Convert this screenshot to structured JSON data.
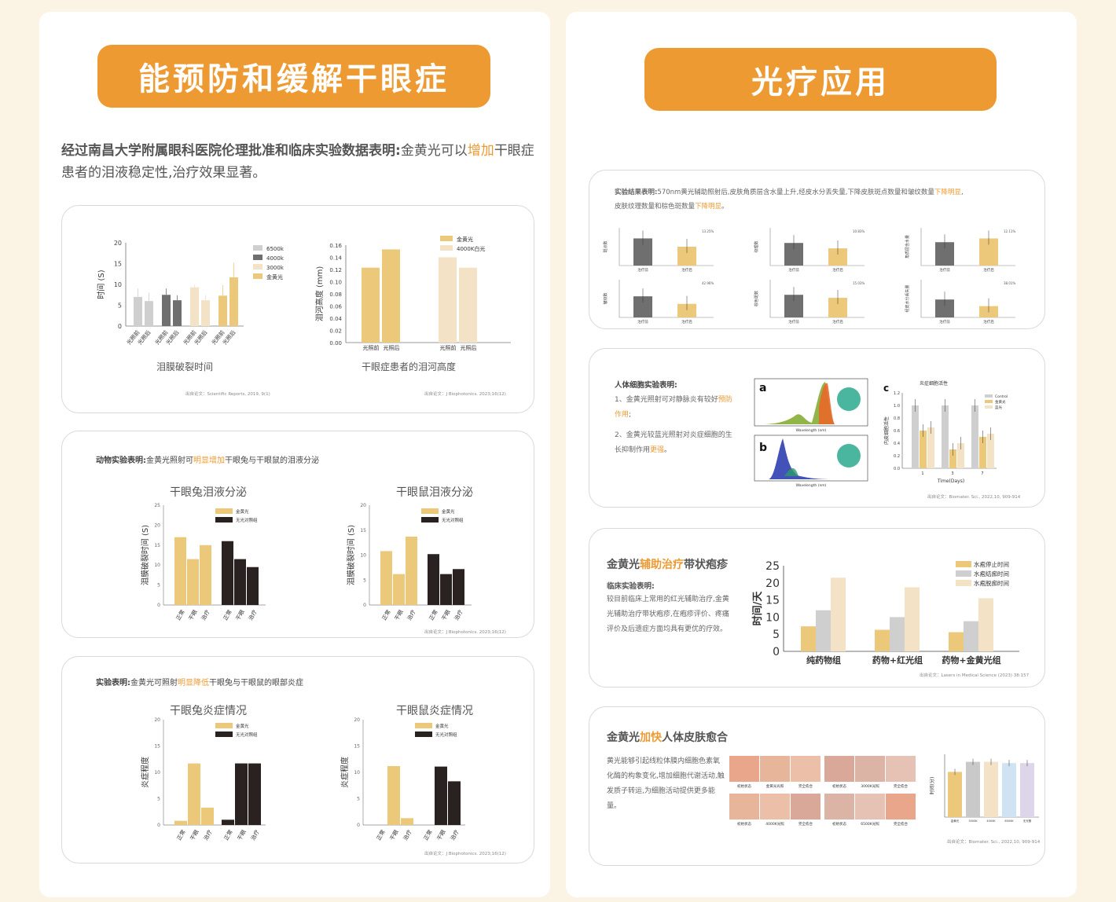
{
  "left": {
    "header": "能预防和缓解干眼症",
    "intro": {
      "bold": "经过南昌大学附属眼科医院伦理批准和临床实验数据表明:",
      "plain1": "金黄光可以",
      "highlight": "增加",
      "plain2": "干眼症患者的泪液稳定性,治疗效果显著。"
    },
    "card1": {
      "chart1": {
        "ylabel": "时间 (S)",
        "yticks": [
          "20",
          "15",
          "10",
          "5",
          "0"
        ],
        "legend": [
          "6500k",
          "4000k",
          "3000k",
          "金黄光"
        ],
        "xlabels": [
          "光照前",
          "光照后",
          "光照前",
          "光照后",
          "光照前",
          "光照后",
          "光照前",
          "光照后"
        ],
        "caption": "泪膜破裂时间",
        "source": "出自论文：Scientific Reports, 2019, 9(1)"
      },
      "chart2": {
        "ylabel": "泪河高度 (mm)",
        "yticks": [
          "0.16",
          "0.14",
          "0.12",
          "0.10",
          "0.08",
          "0.06",
          "0.04",
          "0.02",
          "0.00"
        ],
        "legend": [
          "金黄光",
          "4000K白光"
        ],
        "xlabels": [
          "光照前",
          "光照后",
          "光照前",
          "光照后"
        ],
        "caption": "干眼症患者的泪河高度",
        "source": "出自论文：J Biophotonics. 2023;16(12)"
      }
    },
    "card2": {
      "heading_bold": "动物实验表明:",
      "heading_plain1": "金黄光照射可",
      "heading_highlight": "明显增加",
      "heading_plain2": "干眼兔与干眼鼠的泪液分泌",
      "chart1_title": "干眼兔泪液分泌",
      "chart2_title": "干眼鼠泪液分泌",
      "ylabel": "泪膜破裂时间 (S)",
      "yticks": [
        "25",
        "20",
        "15",
        "10",
        "5",
        "0"
      ],
      "legend": [
        "金黄光",
        "无光对照组"
      ],
      "xlabels": [
        "正常",
        "干眼",
        "治疗",
        "正常",
        "干眼",
        "治疗"
      ],
      "source": "出自论文：J Biophotonics. 2023;16(12)"
    },
    "card3": {
      "heading_bold": "实验表明:",
      "heading_plain1": "金黄光可照射",
      "heading_highlight": "明显降低",
      "heading_plain2": "干眼兔与干眼鼠的眼部炎症",
      "chart1_title": "干眼兔炎症情况",
      "chart2_title": "干眼鼠炎症情况",
      "ylabel": "炎症程度",
      "yticks": [
        "20",
        "15",
        "10",
        "5",
        "0"
      ],
      "legend": [
        "金黄光",
        "无光对照组"
      ],
      "xlabels": [
        "正常",
        "干眼",
        "治疗",
        "正常",
        "干眼",
        "治疗"
      ],
      "source": "出自论文：J Biophotonics. 2023;16(12)"
    }
  },
  "right": {
    "header": "光疗应用",
    "card1": {
      "heading_bold": "实验结果表明:",
      "heading_plain": "570nm黄光辅助照射后,皮肤角质层含水量上升,经皮水分丢失量,下降皮肤斑点数量和皱纹数量",
      "heading_highlight": "下降明显",
      "heading_plain2": "皮肤纹理数量和棕色斑数量",
      "heading_highlight2": "下降明显",
      "mini_xlabels": [
        "治疗前",
        "治疗后"
      ],
      "mini_ylabels": [
        "斑点数",
        "纹理数",
        "角质层含水量",
        "皱纹数",
        "棕色斑数",
        "经皮水分丢失量"
      ],
      "mini_pcts": [
        "13.25%",
        "10.83%",
        "12.11%",
        "42.96%",
        "15.03%",
        "38.01%"
      ]
    },
    "card2": {
      "title": "人体细胞实验表明:",
      "p1_plain": "1、金黄光照射可对静脉炎有较好",
      "p1_highlight": "预防作用",
      "p1_end": ";",
      "p2_plain": "2、金黄光较蓝光照射对炎症细胞的生长抑制作用",
      "p2_highlight": "更强",
      "p2_end": "。",
      "label_a": "a",
      "label_b": "b",
      "label_c": "c",
      "spectrum_xlabel": "Wavelength (nm)",
      "chart_title": "炎症细胞活性",
      "chart_ylabel": "内皮细胞活性",
      "chart_xlabel": "Time(Days)",
      "chart_legend": [
        "Control",
        "金黄光",
        "蓝光"
      ],
      "chart_xticks": [
        "1",
        "3",
        "7"
      ],
      "source": "出自论文：Biomater. Sci., 2022,10, 909-914"
    },
    "card3": {
      "title_plain1": "金黄光",
      "title_highlight": "辅助治疗",
      "title_plain2": "带状疱疹",
      "sub": "临床实验表明:",
      "text": "较目前临床上常用的红光辅助治疗,金黄光辅助治疗带状疱疹,在疱疹评价、疼痛评价及后遗症方面均具有更优的疗效。",
      "ylabel": "时间/天",
      "yticks": [
        "25",
        "20",
        "15",
        "10",
        "5",
        "0"
      ],
      "categories": [
        "纯药物组",
        "药物+红光组",
        "药物+金黄光组"
      ],
      "legend": [
        "水疱停止时间",
        "水疱结痂时间",
        "水疱脱痂时间"
      ],
      "source": "出自论文：Lasers in Medical Science (2023) 38:157"
    },
    "card4": {
      "title_plain1": "金黄光",
      "title_highlight": "加快",
      "title_plain2": "人体皮肤愈合",
      "text": "黄光能够引起线粒体膜内细胞色素氧化酶的构象变化,增加细胞代谢活动,触发质子转运,为细胞活动提供更多能量。",
      "photo_labels_top": [
        "初始状态",
        "金黄光光照",
        "完全愈合",
        "初始状态",
        "3000K光照",
        "完全愈合"
      ],
      "photo_labels_bottom": [
        "初始状态",
        "4000K光照",
        "完全愈合",
        "初始状态",
        "6500K光照",
        "完全愈合"
      ],
      "ylabel": "时间(分)",
      "xlabels": [
        "金黄光",
        "3000K",
        "4000K",
        "6500K",
        "无光照"
      ],
      "source": "出自论文：Biomater. Sci., 2022,10, 909-914"
    }
  },
  "colors": {
    "accent": "#ee9a33",
    "gold": "#ecc97a",
    "dark": "#2a2220",
    "gray1": "#cfcfcf",
    "gray2": "#6f6f6f",
    "cream": "#f3e2c6"
  },
  "chart_data": [
    {
      "type": "bar",
      "title": "",
      "ylabel": "时间 (S)",
      "categories": [
        "光照前",
        "光照后"
      ],
      "series": [
        {
          "name": "6500k",
          "values": [
            7,
            6
          ]
        },
        {
          "name": "4000k",
          "values": [
            7.5,
            6.2
          ]
        },
        {
          "name": "3000k",
          "values": [
            9.3,
            6.2
          ]
        },
        {
          "name": "金黄光",
          "values": [
            7.3,
            11.7
          ]
        }
      ],
      "ylim": [
        0,
        20
      ]
    },
    {
      "type": "bar",
      "ylabel": "泪河高度 (mm)",
      "categories": [
        "光照前",
        "光照后"
      ],
      "series": [
        {
          "name": "金黄光",
          "values": [
            0.123,
            0.153
          ]
        },
        {
          "name": "4000K白光",
          "values": [
            0.14,
            0.123
          ]
        }
      ],
      "ylim": [
        0,
        0.16
      ]
    },
    {
      "type": "bar",
      "title": "干眼兔泪液分泌",
      "ylabel": "泪膜破裂时间 (S)",
      "categories": [
        "正常",
        "干眼",
        "治疗"
      ],
      "series": [
        {
          "name": "金黄光",
          "values": [
            17,
            11.5,
            15
          ]
        },
        {
          "name": "无光对照组",
          "values": [
            16,
            11.5,
            9.5
          ]
        }
      ],
      "ylim": [
        0,
        25
      ]
    },
    {
      "type": "bar",
      "title": "干眼鼠泪液分泌",
      "ylabel": "泪膜破裂时间 (S)",
      "categories": [
        "正常",
        "干眼",
        "治疗"
      ],
      "series": [
        {
          "name": "金黄光",
          "values": [
            10.8,
            6.2,
            13.7
          ]
        },
        {
          "name": "无光对照组",
          "values": [
            10.2,
            6.2,
            7.2
          ]
        }
      ],
      "ylim": [
        0,
        20
      ]
    },
    {
      "type": "bar",
      "title": "干眼兔炎症情况",
      "ylabel": "炎症程度",
      "categories": [
        "正常",
        "干眼",
        "治疗"
      ],
      "series": [
        {
          "name": "金黄光",
          "values": [
            0.8,
            11.7,
            3.3
          ]
        },
        {
          "name": "无光对照组",
          "values": [
            1,
            11.7,
            11.7
          ]
        }
      ],
      "ylim": [
        0,
        20
      ]
    },
    {
      "type": "bar",
      "title": "干眼鼠炎症情况",
      "ylabel": "炎症程度",
      "categories": [
        "正常",
        "干眼",
        "治疗"
      ],
      "series": [
        {
          "name": "金黄光",
          "values": [
            0,
            11.2,
            1.3
          ]
        },
        {
          "name": "无光对照组",
          "values": [
            0,
            11.1,
            8.3
          ]
        }
      ],
      "ylim": [
        0,
        20
      ]
    },
    {
      "type": "bar",
      "ylabel": "时间/天",
      "categories": [
        "纯药物组",
        "药物+红光组",
        "药物+金黄光组"
      ],
      "series": [
        {
          "name": "水疱停止时间",
          "values": [
            7.3,
            6.3,
            5.6
          ]
        },
        {
          "name": "水疱结痂时间",
          "values": [
            12,
            10,
            8.8
          ]
        },
        {
          "name": "水疱脱痂时间",
          "values": [
            21.5,
            18.7,
            15.5
          ]
        }
      ],
      "ylim": [
        0,
        25
      ]
    }
  ]
}
